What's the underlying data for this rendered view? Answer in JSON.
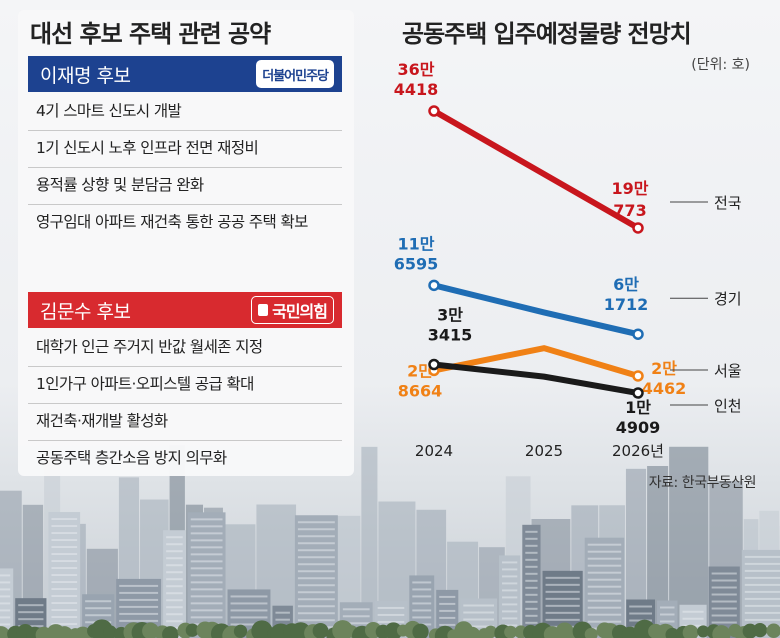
{
  "left": {
    "title": "대선 후보 주택 관련 공약",
    "candidates": [
      {
        "name": "이재명 후보",
        "party": "더불어민주당",
        "color": "#1d4290",
        "pledges": [
          "4기 스마트 신도시 개발",
          "1기 신도시 노후 인프라 전면 재정비",
          "용적률 상향 및 분담금 완화",
          "영구임대 아파트 재건축 통한 공공 주택 확보"
        ]
      },
      {
        "name": "김문수 후보",
        "party": "국민의힘",
        "color": "#d82a2f",
        "pledges": [
          "대학가 인근 주거지 반값 월세존 지정",
          "1인가구 아파트·오피스텔 공급 확대",
          "재건축·재개발 활성화",
          "공동주택 층간소음 방지 의무화"
        ]
      }
    ]
  },
  "chart": {
    "title": "공동주택 입주예정물량 전망치",
    "unit": "(단위: 호)",
    "source": "자료: 한국부동산원"
  },
  "chart_data": {
    "type": "line",
    "title": "공동주택 입주예정물량 전망치",
    "x": [
      "2024",
      "2025",
      "2026년"
    ],
    "ylabel": "단위: 호",
    "ylim": [
      0,
      400000
    ],
    "series": [
      {
        "name": "전국",
        "color": "#c8161d",
        "values": [
          364418,
          null,
          190773
        ],
        "start_label": [
          "36만",
          "4418"
        ],
        "end_label": [
          "19만",
          "773"
        ]
      },
      {
        "name": "경기",
        "color": "#1f6db4",
        "values": [
          116595,
          85000,
          61712
        ],
        "start_label": [
          "11만",
          "6595"
        ],
        "end_label": [
          "6만",
          "1712"
        ]
      },
      {
        "name": "서울",
        "color": "#f08116",
        "values": [
          28664,
          48000,
          24462
        ],
        "start_label": [
          "2만",
          "8664"
        ],
        "end_label": [
          "2만",
          "4462"
        ]
      },
      {
        "name": "인천",
        "color": "#1a1a1a",
        "values": [
          33415,
          24000,
          14909
        ],
        "start_label": [
          "3만",
          "3415"
        ],
        "end_label": [
          "1만",
          "4909"
        ]
      }
    ]
  }
}
